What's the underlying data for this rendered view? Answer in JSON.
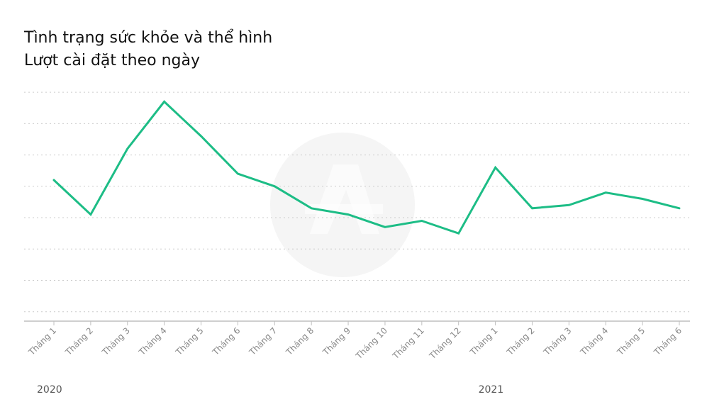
{
  "chart_data": {
    "type": "line",
    "title": "Tình trạng sức khỏe và thể hình",
    "subtitle": "Lượt cài đặt theo ngày",
    "xlabel": "",
    "ylabel": "",
    "grid": true,
    "legend": "none",
    "categories": [
      "Tháng 1",
      "Tháng 2",
      "Tháng 3",
      "Tháng 4",
      "Tháng 5",
      "Tháng 6",
      "Tháng 7",
      "Tháng 8",
      "Tháng 9",
      "Tháng 10",
      "Tháng 11",
      "Tháng 12",
      "Tháng 1",
      "Tháng 2",
      "Tháng 3",
      "Tháng 4",
      "Tháng 5",
      "Tháng 6"
    ],
    "year_labels": [
      {
        "label": "2020",
        "start_index": 0
      },
      {
        "label": "2021",
        "start_index": 12
      }
    ],
    "series": [
      {
        "color": "#1dbd86",
        "values": [
          4.2,
          3.1,
          5.2,
          6.7,
          5.6,
          4.4,
          4.0,
          3.3,
          3.1,
          2.7,
          2.9,
          2.5,
          4.6,
          3.3,
          3.4,
          3.8,
          3.6,
          3.3
        ]
      }
    ],
    "ylim": [
      -0.3,
      7.5
    ],
    "gridlines": [
      0,
      1,
      2,
      3,
      4,
      5,
      6,
      7
    ],
    "colors": {
      "line": "#1dbd86",
      "grid": "#cccccc",
      "axis": "#bfbfbf",
      "tick_label": "#888888",
      "watermark": "#f5f5f5"
    },
    "watermark_icon": "app-store-icon"
  }
}
